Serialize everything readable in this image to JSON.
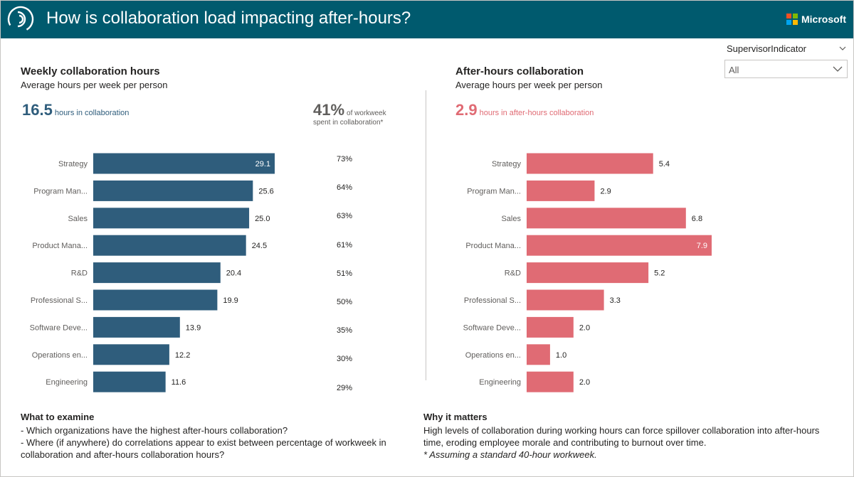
{
  "header": {
    "title": "How is collaboration load impacting after-hours?",
    "brand": "Microsoft",
    "brand_colors": [
      "#f25022",
      "#7fba00",
      "#00a4ef",
      "#ffb900"
    ],
    "background": "#005a6e"
  },
  "slicer": {
    "label": "SupervisorIndicator",
    "value": "All"
  },
  "left": {
    "title": "Weekly collaboration hours",
    "subtitle": "Average hours per week per person",
    "kpi_value": "16.5",
    "kpi_label": "hours in collaboration",
    "pct_value": "41%",
    "pct_label_1": "of workweek",
    "pct_label_2": "spent in collaboration*"
  },
  "right": {
    "title": "After-hours collaboration",
    "subtitle": "Average hours per week per person",
    "kpi_value": "2.9",
    "kpi_label": "hours in after-hours collaboration"
  },
  "chart_data": [
    {
      "type": "bar",
      "orientation": "horizontal",
      "title": "Weekly collaboration hours",
      "subtitle": "Average hours per week per person",
      "categories": [
        "Strategy",
        "Program Man...",
        "Sales",
        "Product Mana...",
        "R&D",
        "Professional S...",
        "Software Deve...",
        "Operations en...",
        "Engineering"
      ],
      "values": [
        29.1,
        25.6,
        25.0,
        24.5,
        20.4,
        19.9,
        13.9,
        12.2,
        11.6
      ],
      "value_labels": [
        "29.1",
        "25.6",
        "25.0",
        "24.5",
        "20.4",
        "19.9",
        "13.9",
        "12.2",
        "11.6"
      ],
      "percent_of_workweek": [
        "73%",
        "64%",
        "63%",
        "61%",
        "51%",
        "50%",
        "35%",
        "30%",
        "29%"
      ],
      "color": "#2f5d7c",
      "xlim": [
        0,
        29.1
      ]
    },
    {
      "type": "bar",
      "orientation": "horizontal",
      "title": "After-hours collaboration",
      "subtitle": "Average hours per week per person",
      "categories": [
        "Strategy",
        "Program Man...",
        "Sales",
        "Product Mana...",
        "R&D",
        "Professional S...",
        "Software Deve...",
        "Operations en...",
        "Engineering"
      ],
      "values": [
        5.4,
        2.9,
        6.8,
        7.9,
        5.2,
        3.3,
        2.0,
        1.0,
        2.0
      ],
      "value_labels": [
        "5.4",
        "2.9",
        "6.8",
        "7.9",
        "5.2",
        "3.3",
        "2.0",
        "1.0",
        "2.0"
      ],
      "color": "#e06b74",
      "xlim": [
        0,
        7.9
      ]
    }
  ],
  "examine": {
    "title": "What to examine",
    "line1": "- Which organizations have the highest after-hours collaboration?",
    "line2": "- Where (if anywhere) do correlations appear to exist between percentage of workweek in",
    "line3": "collaboration and after-hours collaboration hours?"
  },
  "matters": {
    "title": "Why it matters",
    "line1": "High levels of collaboration during working hours can force spillover collaboration into after-hours",
    "line2": "time, eroding employee morale and contributing to burnout over time.",
    "line3": "* Assuming a standard 40-hour workweek."
  }
}
